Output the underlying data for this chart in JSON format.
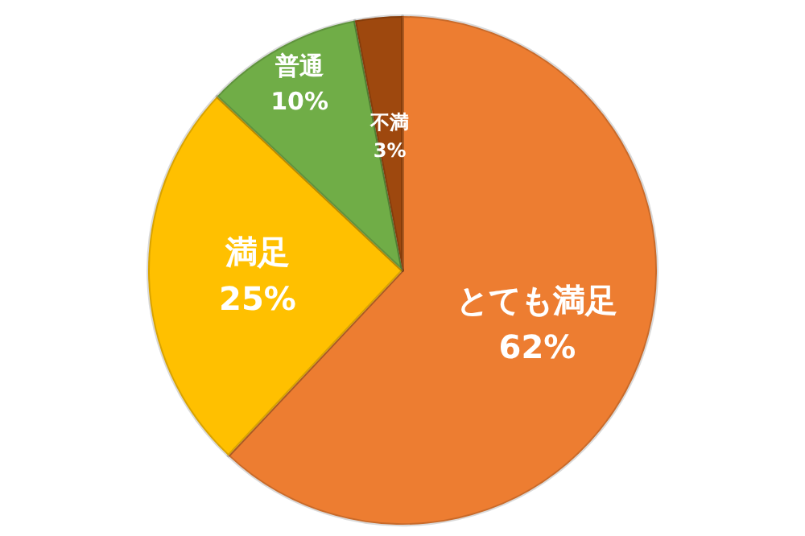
{
  "chart_data": {
    "type": "pie",
    "categories": [
      "とても満足",
      "満足",
      "普通",
      "不満"
    ],
    "values": [
      62,
      25,
      10,
      3
    ],
    "colors": [
      "#ed7d31",
      "#ffc000",
      "#70ad47",
      "#9e480e"
    ],
    "value_labels": [
      "62%",
      "25%",
      "10%",
      "3%"
    ]
  }
}
